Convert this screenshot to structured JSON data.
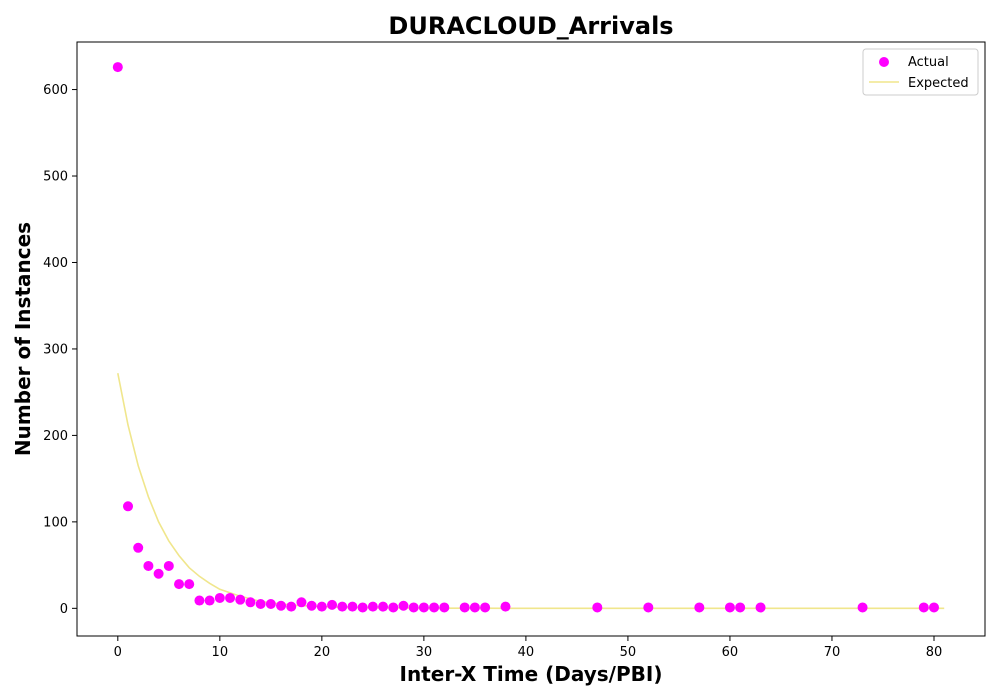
{
  "chart_data": {
    "type": "scatter",
    "title": "DURACLOUD_Arrivals",
    "xlabel": "Inter-X Time (Days/PBI)",
    "ylabel": "Number of Instances",
    "xlim": [
      -4,
      85
    ],
    "ylim": [
      -32,
      655
    ],
    "xticks": [
      0,
      10,
      20,
      30,
      40,
      50,
      60,
      70,
      80
    ],
    "yticks": [
      0,
      100,
      200,
      300,
      400,
      500,
      600
    ],
    "grid": false,
    "legend": {
      "placement": "top-right",
      "entries": [
        "Actual",
        "Expected"
      ]
    },
    "series": [
      {
        "name": "Actual",
        "kind": "scatter",
        "color": "#ff00ff",
        "x": [
          0,
          1,
          2,
          3,
          4,
          5,
          6,
          7,
          8,
          9,
          10,
          11,
          12,
          13,
          14,
          15,
          16,
          17,
          18,
          19,
          20,
          21,
          22,
          23,
          24,
          25,
          26,
          27,
          28,
          29,
          30,
          31,
          32,
          34,
          35,
          36,
          38,
          47,
          52,
          57,
          60,
          61,
          63,
          73,
          79,
          80
        ],
        "y": [
          626,
          118,
          70,
          49,
          40,
          49,
          28,
          28,
          9,
          9,
          12,
          12,
          10,
          7,
          5,
          5,
          3,
          2,
          7,
          3,
          2,
          4,
          2,
          2,
          1,
          2,
          2,
          1,
          3,
          1,
          1,
          1,
          1,
          1,
          1,
          1,
          2,
          1,
          1,
          1,
          1,
          1,
          1,
          1,
          1,
          1
        ]
      },
      {
        "name": "Expected",
        "kind": "line",
        "color": "#f0e68c",
        "x": [
          0,
          1,
          2,
          3,
          4,
          5,
          6,
          7,
          8,
          9,
          10,
          12,
          14,
          16,
          18,
          20,
          22,
          25,
          30,
          35,
          40,
          50,
          60,
          70,
          81
        ],
        "y": [
          272,
          212,
          165,
          129,
          100,
          78,
          61,
          47,
          37,
          29,
          22,
          14,
          8,
          5,
          3,
          2,
          1,
          0.6,
          0.2,
          0.1,
          0,
          0,
          0,
          0,
          0
        ]
      }
    ]
  }
}
